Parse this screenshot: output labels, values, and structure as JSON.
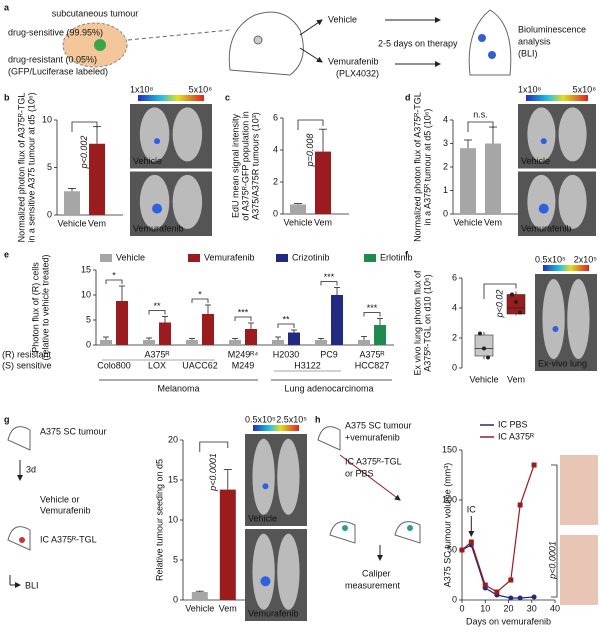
{
  "panel_labels": [
    "a",
    "b",
    "c",
    "d",
    "e",
    "f",
    "g",
    "h"
  ],
  "panel_a": {
    "texts": [
      "subcutaneous tumour",
      "drug-sensitive (99.95%)",
      "drug-resistant (0.05%)",
      "(GFP/Luciferase labeled)",
      "Vehicle",
      "Vemurafenib",
      "(PLX4032)",
      "2-5 days on therapy",
      "Bioluminescence",
      "analysis",
      "(BLI)"
    ]
  },
  "panel_g": {
    "texts": [
      "A375 SC tumour",
      "3d",
      "Vehicle or",
      "Vemurafenib",
      "IC A375ᴿ-TGL",
      "BLI"
    ]
  },
  "panel_h": {
    "texts": [
      "A375 SC tumour",
      "+vemurafenib",
      "IC A375ᴿ-TGL",
      "or PBS",
      "Caliper",
      "measurement"
    ]
  },
  "chart_data": [
    {
      "type": "bar",
      "y_label": [
        "Normalized photon flux of A375ᴿ-TGL",
        "in a sensitive A375 tumour at d5 (10⁶)"
      ],
      "categories": [
        "Vehicle",
        "Vem"
      ],
      "values": [
        2.5,
        7.5
      ],
      "errors": [
        0.3,
        1.8
      ],
      "colors": [
        "#a6a6a6",
        "#9b1c1f"
      ],
      "ylim": [
        0,
        10
      ],
      "yticks": [
        0,
        5,
        10
      ],
      "annotation": "p<0.002",
      "image_labels": [
        "Vehicle",
        "Vemurafenib"
      ],
      "colorbar": [
        "1x10⁸",
        "5x10⁸"
      ]
    },
    {
      "type": "bar",
      "y_label": [
        "EdU mean signal intensity",
        "of A375ᴿ-GFP population  in",
        "A375/A375R tumours (10³)"
      ],
      "categories": [
        "Vehicle",
        "Vem"
      ],
      "values": [
        0.6,
        3.9
      ],
      "errors": [
        0.05,
        1.4
      ],
      "colors": [
        "#a6a6a6",
        "#9b1c1f"
      ],
      "ylim": [
        0,
        6
      ],
      "yticks": [
        0,
        2,
        4,
        6
      ],
      "annotation": "p=0.008"
    },
    {
      "type": "bar",
      "y_label": [
        "Normalized photon flux of A375ᴿ-TGL",
        "in a A375ᴿ tumour at d5 (10⁶)"
      ],
      "categories": [
        "Vehicle",
        "Vem"
      ],
      "values": [
        2.8,
        3.0
      ],
      "errors": [
        0.35,
        0.7
      ],
      "colors": [
        "#a6a6a6",
        "#a6a6a6"
      ],
      "ylim": [
        0,
        4
      ],
      "yticks": [
        0,
        1,
        2,
        3,
        4
      ],
      "annotation": "n.s.",
      "image_labels": [
        "Vehicle",
        "Vemurafenib"
      ],
      "colorbar": [
        "1x10⁸",
        "5x10⁸"
      ]
    },
    {
      "type": "grouped_bar",
      "y_label": [
        "Photon flux of (R) cells",
        "(relative to vehicle treated)"
      ],
      "ylim": [
        0,
        15
      ],
      "yticks": [
        0,
        5,
        10,
        15
      ],
      "series": [
        {
          "name": "Vehicle",
          "color": "#a6a6a6",
          "values": [
            1,
            1,
            1,
            1,
            1,
            1,
            1
          ],
          "errors": [
            0.6,
            0.4,
            0.3,
            0.3,
            0.6,
            0.3,
            0.7
          ]
        },
        {
          "name": "Vemurafenib",
          "color": "#9b1c1f",
          "values": [
            8.8,
            4.5,
            6.2,
            3.2,
            null,
            null,
            null
          ],
          "errors": [
            3,
            1.2,
            1.8,
            1.2,
            null,
            null,
            null
          ]
        },
        {
          "name": "Crizotinib",
          "color": "#1f2a80",
          "values": [
            null,
            null,
            null,
            null,
            2.5,
            10,
            null
          ],
          "errors": [
            null,
            null,
            null,
            null,
            0.5,
            1.5,
            null
          ]
        },
        {
          "name": "Erlotinib",
          "color": "#1e8a4c",
          "values": [
            null,
            null,
            null,
            null,
            null,
            null,
            4
          ],
          "errors": [
            null,
            null,
            null,
            null,
            null,
            null,
            1.3
          ]
        }
      ],
      "annotations": [
        "*",
        "**",
        "*",
        "***",
        "**",
        "***",
        "***"
      ],
      "row_labels": [
        "(R) resistant",
        "(S) sensitive"
      ],
      "r_labels": [
        "A375ᴿ",
        "M249ᴿ⁴",
        "H2030",
        "PC9",
        "A375ᴿ"
      ],
      "s_labels": [
        "Colo800",
        "LOX",
        "UACC62",
        "M249",
        "H3122",
        "HCC827"
      ],
      "groups": [
        "Melanoma",
        "Lung adenocarcinoma"
      ]
    },
    {
      "type": "box",
      "y_label": [
        "Ex vivo lung photon flux of",
        "A375ᴿ-TGL on d10 (10⁶)"
      ],
      "categories": [
        "Vehicle",
        "Vem"
      ],
      "ylim": [
        0,
        6
      ],
      "yticks": [
        0,
        2,
        4,
        6
      ],
      "boxes": [
        {
          "min": 0.6,
          "q1": 0.8,
          "median": 1.3,
          "q3": 2.2,
          "max": 2.4
        },
        {
          "min": 3.5,
          "q1": 3.6,
          "median": 4.0,
          "q3": 4.9,
          "max": 5.1
        }
      ],
      "points": [
        [
          2.3,
          1.3,
          0.7
        ],
        [
          4.9,
          4.4,
          3.7
        ]
      ],
      "colors": [
        "#c8c8c8",
        "#9b1c1f"
      ],
      "annotation": "p<0.02",
      "image_labels": [
        "Ex-vivo lung"
      ],
      "colorbar": [
        "0.5x10⁵",
        "2x10⁵"
      ]
    },
    {
      "type": "bar",
      "y_label": [
        "Relative tumour seeding on d5"
      ],
      "categories": [
        "Vehicle",
        "Vem"
      ],
      "values": [
        1.0,
        13.8
      ],
      "errors": [
        0.1,
        2.5
      ],
      "colors": [
        "#a6a6a6",
        "#9b1c1f"
      ],
      "ylim": [
        0,
        20
      ],
      "yticks": [
        0,
        5,
        10,
        15,
        20
      ],
      "annotation": "p<0.0001",
      "image_labels": [
        "Vehicle",
        "Vemurafenib"
      ],
      "colorbar": [
        "0.5x10⁵",
        "2.5x10⁵"
      ]
    },
    {
      "type": "line",
      "y_label": [
        "A375 SC tumour volume (mm³)"
      ],
      "x_label": "Days on vemurafenib",
      "xlim": [
        0,
        40
      ],
      "xticks": [
        0,
        10,
        20,
        30,
        40
      ],
      "ylim": [
        0,
        150
      ],
      "yticks": [
        0,
        50,
        100,
        150
      ],
      "x": [
        0,
        4,
        10,
        15,
        21,
        25,
        31
      ],
      "series": [
        {
          "name": "IC PBS",
          "color": "#1f2a80",
          "values": [
            50,
            55,
            12,
            5,
            2,
            2,
            3
          ]
        },
        {
          "name": "IC A375ᴿ",
          "color": "#9b1c1f",
          "values": [
            50,
            58,
            15,
            8,
            20,
            95,
            135
          ]
        }
      ],
      "arrow_label": "IC",
      "annotation": "p<0.0001"
    }
  ]
}
